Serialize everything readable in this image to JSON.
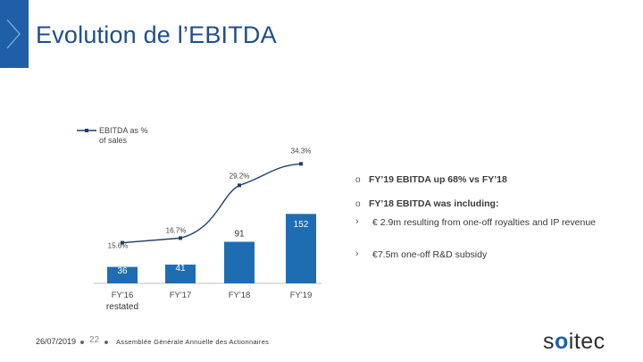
{
  "slide": {
    "title": "Evolution de l’EBITDA",
    "accent_color": "#1f5fa8",
    "bar_color": "#1e6db3",
    "line_color": "#1f3f6b"
  },
  "chart_data": {
    "type": "bar+line",
    "title": "",
    "categories": [
      "FY'16",
      "FY'17",
      "FY'18",
      "FY'19"
    ],
    "category_sublabels": [
      "restated",
      "",
      "",
      ""
    ],
    "series": [
      {
        "name": "EBITDA",
        "type": "bar",
        "values": [
          36,
          41,
          91,
          152
        ]
      },
      {
        "name": "EBITDA as % of sales",
        "type": "line",
        "values": [
          15.6,
          16.7,
          29.2,
          34.3
        ]
      }
    ],
    "data_labels": {
      "bar": [
        "36",
        "41",
        "91",
        "152"
      ],
      "line": [
        "15.6%",
        "16.7%",
        "29.2%",
        "34.3%"
      ]
    },
    "legend": {
      "line1": "EBITDA as %",
      "line2": "of sales",
      "placement": "top-left"
    },
    "ylim": [
      0,
      160
    ],
    "ylim_line": [
      0,
      40
    ]
  },
  "bullets": {
    "marker_main": "o",
    "marker_sub": "›",
    "b1": "FY’19 EBITDA up 68% vs FY’18",
    "b2": "FY’18 EBITDA was including:",
    "sub1": "€ 2.9m resulting from one-off royalties and IP revenue",
    "sub2": "€7.5m one-off R&D subsidy"
  },
  "footer": {
    "date": "26/07/2019",
    "page": "22",
    "text": "Assemblée Générale Annuelle des Actionnaires"
  },
  "logo": {
    "prefix": "s",
    "o": "o",
    "suffix": "itec"
  }
}
